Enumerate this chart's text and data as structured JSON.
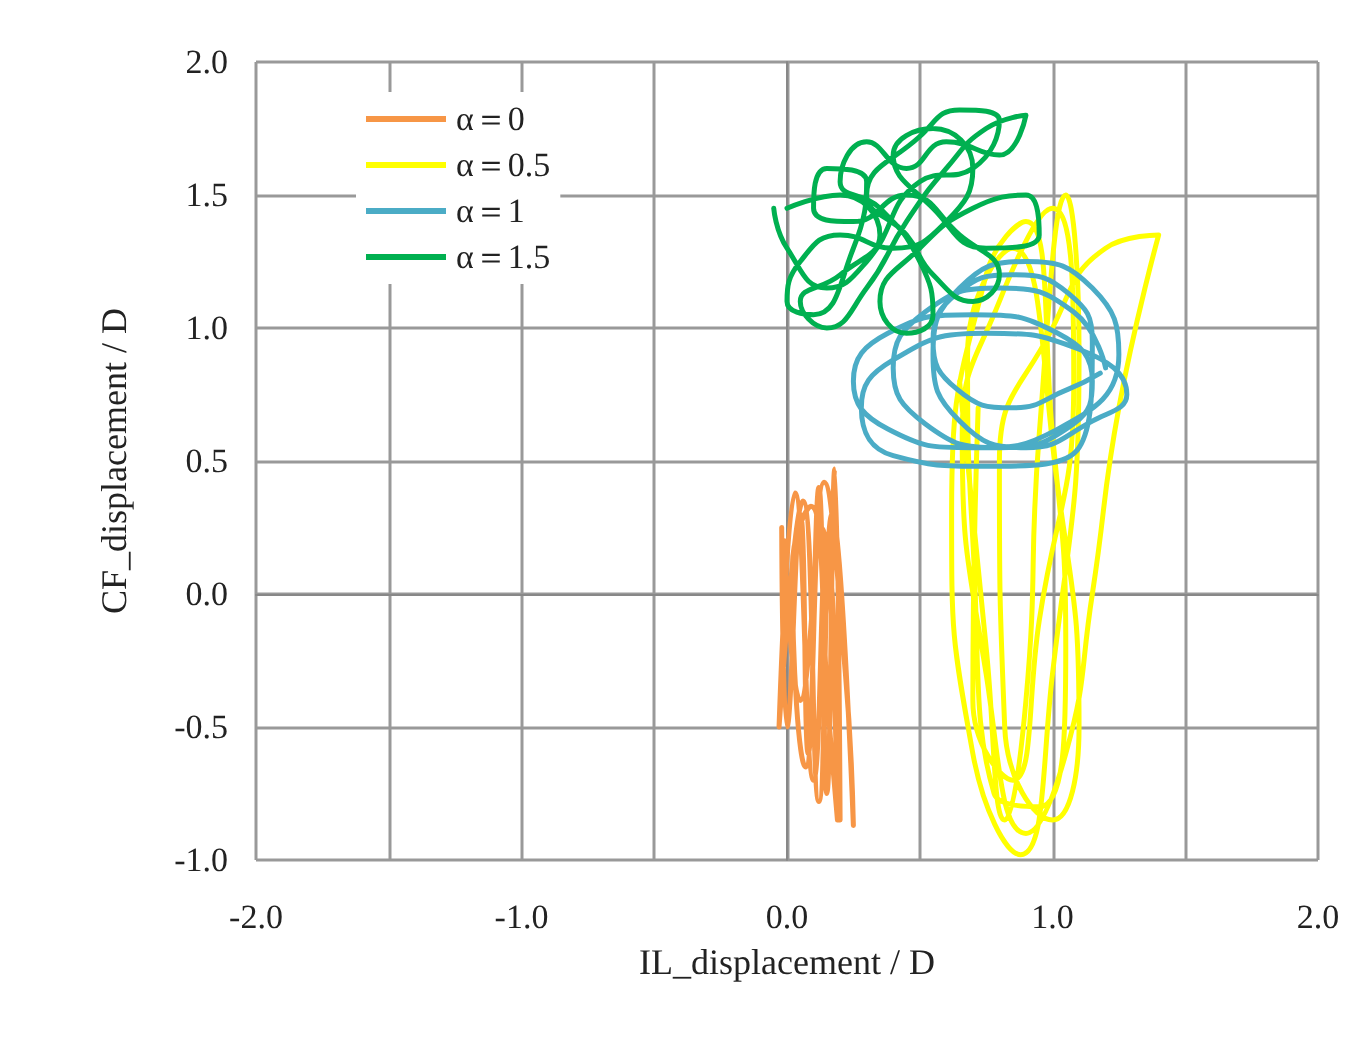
{
  "chart_data": {
    "type": "line",
    "xlabel": "IL_displacement / D",
    "ylabel": "CF_displacement / D",
    "xlim": [
      -2,
      2
    ],
    "ylim": [
      -1,
      2
    ],
    "xticks": [
      {
        "value": -2,
        "label": "-2.0"
      },
      {
        "value": -1.5,
        "label": null
      },
      {
        "value": -1,
        "label": "-1.0"
      },
      {
        "value": -0.5,
        "label": null
      },
      {
        "value": 0,
        "label": "0.0"
      },
      {
        "value": 0.5,
        "label": null
      },
      {
        "value": 1,
        "label": "1.0"
      },
      {
        "value": 1.5,
        "label": null
      },
      {
        "value": 2,
        "label": "2.0"
      }
    ],
    "yticks": [
      {
        "value": -1,
        "label": "-1.0"
      },
      {
        "value": -0.5,
        "label": "-0.5"
      },
      {
        "value": 0,
        "label": "0.0"
      },
      {
        "value": 0.5,
        "label": "0.5"
      },
      {
        "value": 1,
        "label": "1.0"
      },
      {
        "value": 1.5,
        "label": "1.5"
      },
      {
        "value": 2,
        "label": "2.0"
      }
    ],
    "grid": true,
    "legend": "top left",
    "marker": "none",
    "line_style": "solid",
    "series": [
      {
        "name": "α＝0",
        "color": "#f79646",
        "x": [
          -0.02,
          0.0,
          0.05,
          0.08,
          0.12,
          0.15,
          0.18,
          0.2,
          0.15,
          0.1,
          0.03,
          -0.03,
          0.06,
          0.12,
          0.17,
          0.25,
          0.22,
          0.14,
          0.07,
          0.02,
          0.09,
          0.16,
          0.19,
          0.13,
          0.05,
          -0.01
        ],
        "values": [
          0.25,
          -0.5,
          0.3,
          -0.6,
          0.4,
          -0.75,
          0.47,
          -0.85,
          0.2,
          -0.7,
          0.38,
          -0.5,
          0.35,
          -0.78,
          0.3,
          -0.87,
          -0.3,
          0.42,
          -0.65,
          0.1,
          0.33,
          -0.5,
          -0.85,
          0.25,
          -0.4,
          0.2
        ]
      },
      {
        "name": "α＝0.5",
        "color": "#ffff00",
        "x": [
          0.65,
          0.75,
          0.82,
          0.9,
          0.95,
          1.05,
          1.1,
          1.0,
          0.88,
          0.7,
          0.62,
          0.75,
          0.9,
          1.0,
          1.05,
          0.95,
          0.78,
          0.7,
          0.68,
          0.85,
          1.02,
          1.1,
          1.0,
          0.82,
          0.8,
          1.0,
          1.2,
          1.4,
          1.25,
          1.15,
          1.05,
          0.9,
          0.75,
          0.66,
          0.8,
          1.0,
          1.08,
          0.95,
          0.85,
          0.7,
          0.72
        ],
        "values": [
          0.8,
          -0.2,
          -0.85,
          -0.4,
          0.6,
          1.5,
          0.9,
          -0.3,
          -0.98,
          -0.6,
          0.3,
          1.2,
          1.4,
          0.6,
          -0.2,
          -0.8,
          -0.75,
          0.2,
          0.9,
          1.3,
          0.4,
          -0.5,
          -0.85,
          -0.5,
          0.5,
          1.0,
          1.3,
          1.35,
          0.7,
          0.0,
          -0.6,
          -0.9,
          -0.3,
          0.6,
          1.1,
          1.45,
          0.8,
          -0.1,
          -0.7,
          -0.4,
          0.7
        ]
      },
      {
        "name": "α＝1",
        "color": "#4bacc6",
        "x": [
          1.2,
          1.08,
          0.8,
          0.52,
          0.4,
          0.52,
          0.8,
          1.08,
          1.15,
          1.02,
          0.7,
          0.38,
          0.25,
          0.38,
          0.7,
          1.02,
          1.25,
          1.15,
          0.9,
          0.65,
          0.55,
          0.65,
          0.9,
          1.15,
          1.28,
          1.1,
          0.75,
          0.4,
          0.28,
          0.4,
          0.75,
          1.1,
          1.15,
          1.06,
          0.85,
          0.64,
          0.55,
          0.64,
          0.85,
          1.06,
          1.18
        ],
        "values": [
          0.85,
          1.06,
          1.15,
          1.06,
          0.85,
          0.64,
          0.55,
          0.64,
          0.8,
          0.98,
          1.05,
          0.98,
          0.8,
          0.62,
          0.55,
          0.62,
          0.9,
          1.15,
          1.25,
          1.15,
          0.9,
          0.65,
          0.55,
          0.65,
          0.75,
          0.92,
          0.98,
          0.88,
          0.7,
          0.52,
          0.48,
          0.55,
          0.95,
          1.13,
          1.2,
          1.13,
          0.95,
          0.77,
          0.7,
          0.77,
          0.83
        ]
      },
      {
        "name": "α＝1.5",
        "color": "#00b050",
        "x": [
          0.0,
          0.2,
          0.35,
          0.2,
          0.05,
          0.15,
          0.3,
          0.45,
          0.6,
          0.75,
          0.9,
          0.8,
          0.6,
          0.45,
          0.3,
          0.2,
          0.35,
          0.5,
          0.55,
          0.45,
          0.35,
          0.5,
          0.7,
          0.9,
          0.95,
          0.75,
          0.55,
          0.4,
          0.55,
          0.7,
          0.6,
          0.4,
          0.2,
          0.05,
          0.0,
          0.1,
          0.25,
          0.3,
          0.15,
          0.1,
          0.25,
          0.45,
          0.65,
          0.8,
          0.7,
          0.55,
          0.45,
          0.3,
          0.5,
          0.65,
          0.8,
          0.7,
          0.5,
          0.3,
          0.15,
          0.0,
          -0.05
        ],
        "values": [
          1.45,
          1.5,
          1.35,
          1.2,
          1.1,
          1.0,
          1.15,
          1.4,
          1.6,
          1.75,
          1.8,
          1.65,
          1.7,
          1.6,
          1.7,
          1.55,
          1.45,
          1.25,
          1.05,
          0.98,
          1.1,
          1.3,
          1.45,
          1.5,
          1.35,
          1.3,
          1.45,
          1.65,
          1.75,
          1.6,
          1.4,
          1.3,
          1.35,
          1.25,
          1.1,
          1.05,
          1.3,
          1.55,
          1.6,
          1.45,
          1.4,
          1.5,
          1.35,
          1.2,
          1.1,
          1.2,
          1.35,
          1.5,
          1.72,
          1.82,
          1.78,
          1.6,
          1.55,
          1.25,
          1.15,
          1.3,
          1.45
        ]
      }
    ]
  }
}
